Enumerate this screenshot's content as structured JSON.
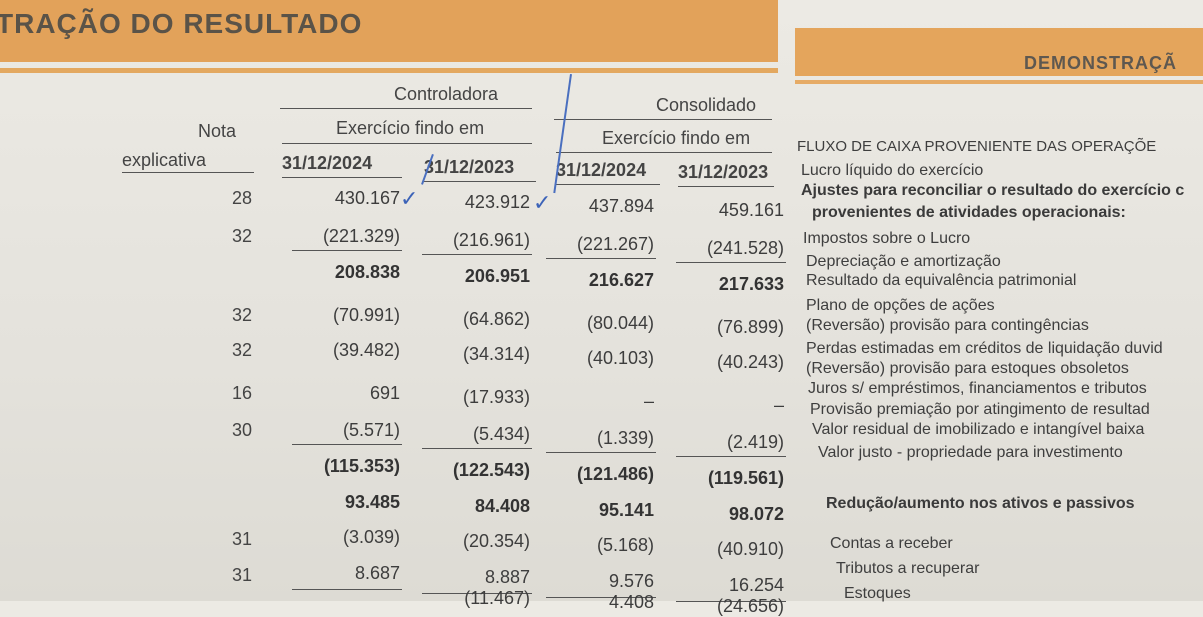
{
  "left_title": "TRAÇÃO DO RESULTADO",
  "right_title": "DEMONSTRAÇÃ",
  "headers": {
    "controladora": "Controladora",
    "consolidado": "Consolidado",
    "nota": "Nota",
    "explicativa": "explicativa",
    "exercicio_ctrl": "Exercício findo em",
    "exercicio_cons": "Exercício findo em",
    "dates": [
      "31/12/2024",
      "31/12/2023",
      "31/12/2024",
      "31/12/2023"
    ]
  },
  "rows": [
    {
      "nota": "28",
      "values": [
        "430.167",
        "423.912",
        "437.894",
        "459.161"
      ]
    },
    {
      "nota": "32",
      "values": [
        "(221.329)",
        "(216.961)",
        "(221.267)",
        "(241.528)"
      ]
    },
    {
      "nota": "",
      "values": [
        "208.838",
        "206.951",
        "216.627",
        "217.633"
      ]
    },
    {
      "nota": "32",
      "values": [
        "(70.991)",
        "(64.862)",
        "(80.044)",
        "(76.899)"
      ]
    },
    {
      "nota": "32",
      "values": [
        "(39.482)",
        "(34.314)",
        "(40.103)",
        "(40.243)"
      ]
    },
    {
      "nota": "16",
      "values": [
        "691",
        "(17.933)",
        "–",
        "–"
      ]
    },
    {
      "nota": "30",
      "values": [
        "(5.571)",
        "(5.434)",
        "(1.339)",
        "(2.419)"
      ]
    },
    {
      "nota": "",
      "values": [
        "(115.353)",
        "(122.543)",
        "(121.486)",
        "(119.561)"
      ]
    },
    {
      "nota": "",
      "values": [
        "93.485",
        "84.408",
        "95.141",
        "98.072"
      ]
    },
    {
      "nota": "31",
      "values": [
        "(3.039)",
        "(20.354)",
        "(5.168)",
        "(40.910)"
      ]
    },
    {
      "nota": "31",
      "values": [
        "8.687",
        "8.887",
        "9.576",
        "16.254"
      ]
    },
    {
      "nota": "",
      "values": [
        "",
        "(11.467)",
        "4.408",
        "(24.656)"
      ]
    }
  ],
  "cashflow": {
    "heading": "FLUXO DE CAIXA PROVENIENTE DAS OPERAÇÕE",
    "items": [
      "Lucro líquido do exercício",
      "Ajustes para reconciliar o resultado do exercício c",
      "provenientes de atividades operacionais:",
      "Impostos sobre o Lucro",
      "Depreciação e amortização",
      "Resultado da equivalência patrimonial",
      "Plano de opções de ações",
      "(Reversão) provisão para contingências",
      "Perdas estimadas em créditos de liquidação duvid",
      "(Reversão) provisão para estoques obsoletos",
      "Juros s/ empréstimos, financiamentos e tributos",
      "Provisão premiação por atingimento de resultad",
      "Valor residual de imobilizado e intangível baixa",
      "Valor justo - propriedade para investimento",
      "Redução/aumento nos ativos e passivos",
      "Contas a receber",
      "Tributos a recuperar",
      "Estoques"
    ]
  }
}
